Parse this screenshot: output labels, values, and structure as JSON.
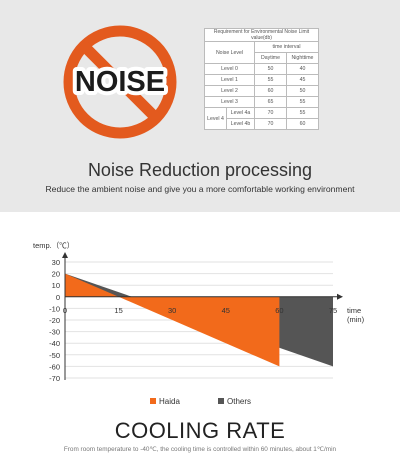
{
  "noise_section": {
    "sign_text": "NOISE",
    "table": {
      "caption": "Requirement for Environmental Noise Limit value(db)",
      "header_level": "Noise Level",
      "header_interval": "time interval",
      "header_day": "Daytime",
      "header_night": "Nighttime",
      "rows": [
        {
          "level": "Level 0",
          "day": "50",
          "night": "40"
        },
        {
          "level": "Level 1",
          "day": "55",
          "night": "45"
        },
        {
          "level": "Level 2",
          "day": "60",
          "night": "50"
        },
        {
          "level": "Level 3",
          "day": "65",
          "night": "55"
        }
      ],
      "group_label": "Level 4",
      "group_rows": [
        {
          "level": "Level 4a",
          "day": "70",
          "night": "55"
        },
        {
          "level": "Level 4b",
          "day": "70",
          "night": "60"
        }
      ]
    },
    "title": "Noise Reduction processing",
    "subtitle": "Reduce the ambient noise and give you a more comfortable working environment",
    "colors": {
      "sign": "#e35a1e",
      "background": "#e8e8e8"
    }
  },
  "chart_data": {
    "type": "area",
    "ylabel": "temp.（℃）",
    "xlabel": "time (min)",
    "xlabel_lines": [
      "time",
      "(min)"
    ],
    "x_ticks": [
      "0",
      "15",
      "30",
      "45",
      "60",
      "75"
    ],
    "x_tick_values": [
      0,
      15,
      30,
      45,
      60,
      75
    ],
    "y_ticks": [
      "30",
      "20",
      "10",
      "0",
      "-10",
      "-20",
      "-30",
      "-40",
      "-50",
      "-60",
      "-70"
    ],
    "y_tick_values": [
      30,
      20,
      10,
      0,
      -10,
      -20,
      -30,
      -40,
      -50,
      -60,
      -70
    ],
    "xlim": [
      0,
      75
    ],
    "ylim": [
      -70,
      30
    ],
    "grid": true,
    "legend_position": "bottom-center",
    "series": [
      {
        "name": "Haida",
        "color": "#f26a1b",
        "x": [
          0,
          60
        ],
        "y": [
          20,
          -60
        ]
      },
      {
        "name": "Others",
        "color": "#555555",
        "x": [
          0,
          75
        ],
        "y": [
          20,
          -60
        ]
      }
    ]
  },
  "cooling_section": {
    "title": "COOLING RATE",
    "subtitle": "From room temperature to -40℃, the cooling time is controlled within 60 minutes, about 1℃/min"
  }
}
